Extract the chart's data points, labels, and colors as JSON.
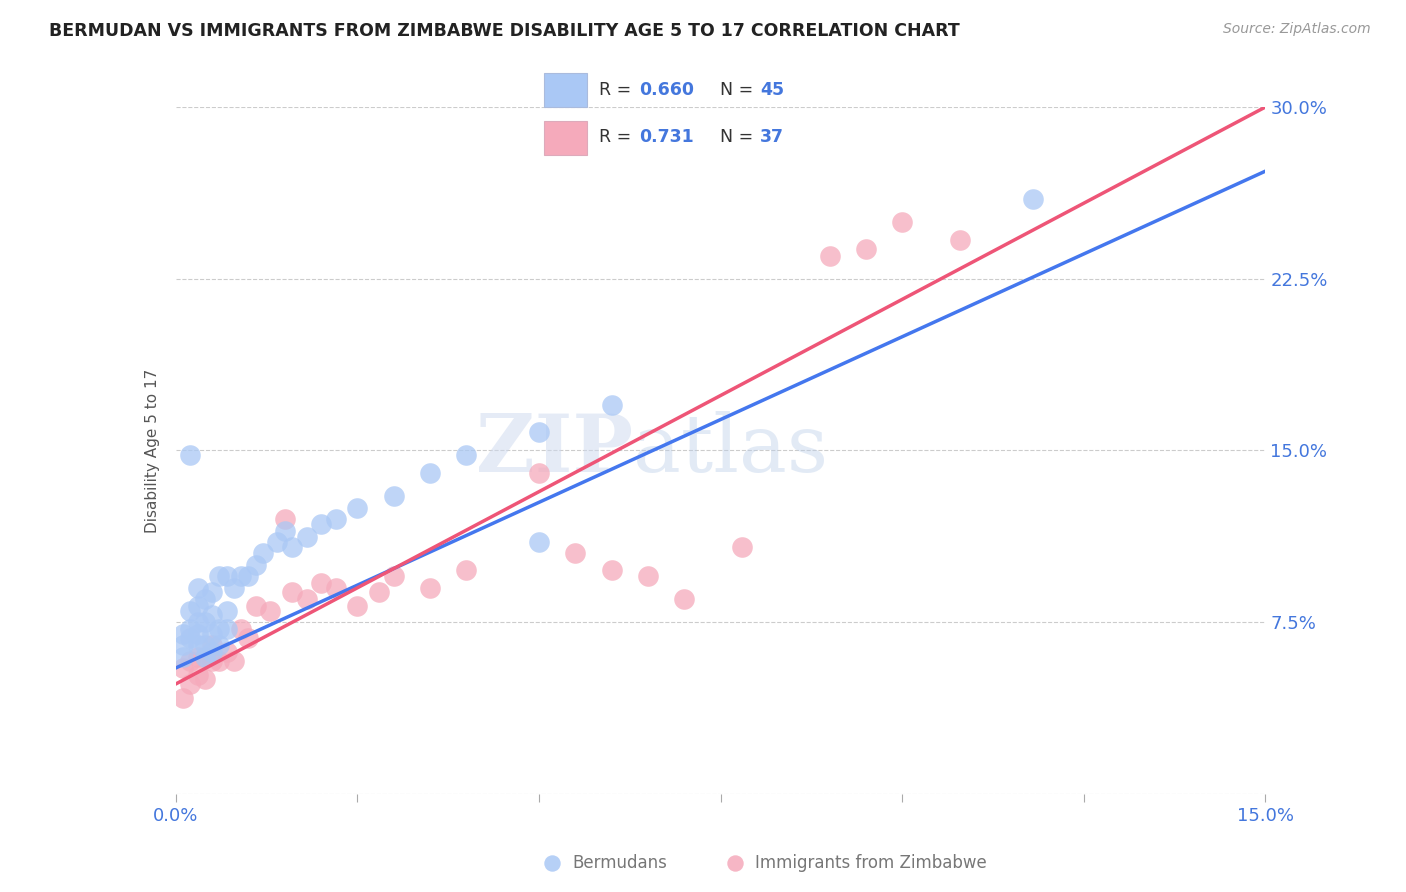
{
  "title": "BERMUDAN VS IMMIGRANTS FROM ZIMBABWE DISABILITY AGE 5 TO 17 CORRELATION CHART",
  "source": "Source: ZipAtlas.com",
  "ylabel": "Disability Age 5 to 17",
  "xlim": [
    0.0,
    0.15
  ],
  "ylim": [
    0.0,
    0.3
  ],
  "xtick_pos": [
    0.0,
    0.025,
    0.05,
    0.075,
    0.1,
    0.125,
    0.15
  ],
  "xtick_labels": [
    "0.0%",
    "",
    "",
    "",
    "",
    "",
    "15.0%"
  ],
  "ytick_pos": [
    0.0,
    0.075,
    0.15,
    0.225,
    0.3
  ],
  "ytick_labels_right": [
    "",
    "7.5%",
    "15.0%",
    "22.5%",
    "30.0%"
  ],
  "watermark_zip": "ZIP",
  "watermark_atlas": "atlas",
  "bermudans_color": "#aac8f5",
  "zimbabwe_color": "#f5aabb",
  "line_blue": "#4477ee",
  "line_pink": "#ee5577",
  "legend_R_blue": "0.660",
  "legend_N_blue": "45",
  "legend_R_pink": "0.731",
  "legend_N_pink": "37",
  "blue_line_x0": 0.0,
  "blue_line_y0": 0.055,
  "blue_line_x1": 0.15,
  "blue_line_y1": 0.272,
  "pink_line_x0": 0.0,
  "pink_line_y0": 0.048,
  "pink_line_x1": 0.15,
  "pink_line_y1": 0.3,
  "bermudans_x": [
    0.001,
    0.001,
    0.001,
    0.002,
    0.002,
    0.002,
    0.003,
    0.003,
    0.003,
    0.003,
    0.003,
    0.004,
    0.004,
    0.004,
    0.004,
    0.005,
    0.005,
    0.005,
    0.005,
    0.006,
    0.006,
    0.006,
    0.007,
    0.007,
    0.007,
    0.008,
    0.009,
    0.01,
    0.011,
    0.012,
    0.014,
    0.015,
    0.016,
    0.018,
    0.02,
    0.022,
    0.025,
    0.03,
    0.035,
    0.04,
    0.05,
    0.06,
    0.05,
    0.118,
    0.002
  ],
  "bermudans_y": [
    0.06,
    0.065,
    0.07,
    0.068,
    0.072,
    0.08,
    0.065,
    0.07,
    0.075,
    0.082,
    0.09,
    0.06,
    0.065,
    0.075,
    0.085,
    0.062,
    0.07,
    0.078,
    0.088,
    0.065,
    0.072,
    0.095,
    0.072,
    0.08,
    0.095,
    0.09,
    0.095,
    0.095,
    0.1,
    0.105,
    0.11,
    0.115,
    0.108,
    0.112,
    0.118,
    0.12,
    0.125,
    0.13,
    0.14,
    0.148,
    0.158,
    0.17,
    0.11,
    0.26,
    0.148
  ],
  "zimbabwe_x": [
    0.001,
    0.001,
    0.002,
    0.002,
    0.003,
    0.003,
    0.004,
    0.004,
    0.005,
    0.005,
    0.006,
    0.007,
    0.008,
    0.009,
    0.01,
    0.011,
    0.013,
    0.015,
    0.016,
    0.018,
    0.02,
    0.022,
    0.025,
    0.028,
    0.03,
    0.035,
    0.04,
    0.05,
    0.055,
    0.06,
    0.065,
    0.07,
    0.078,
    0.09,
    0.095,
    0.1,
    0.108
  ],
  "zimbabwe_y": [
    0.042,
    0.055,
    0.048,
    0.058,
    0.052,
    0.06,
    0.05,
    0.06,
    0.058,
    0.065,
    0.058,
    0.062,
    0.058,
    0.072,
    0.068,
    0.082,
    0.08,
    0.12,
    0.088,
    0.085,
    0.092,
    0.09,
    0.082,
    0.088,
    0.095,
    0.09,
    0.098,
    0.14,
    0.105,
    0.098,
    0.095,
    0.085,
    0.108,
    0.235,
    0.238,
    0.25,
    0.242
  ]
}
